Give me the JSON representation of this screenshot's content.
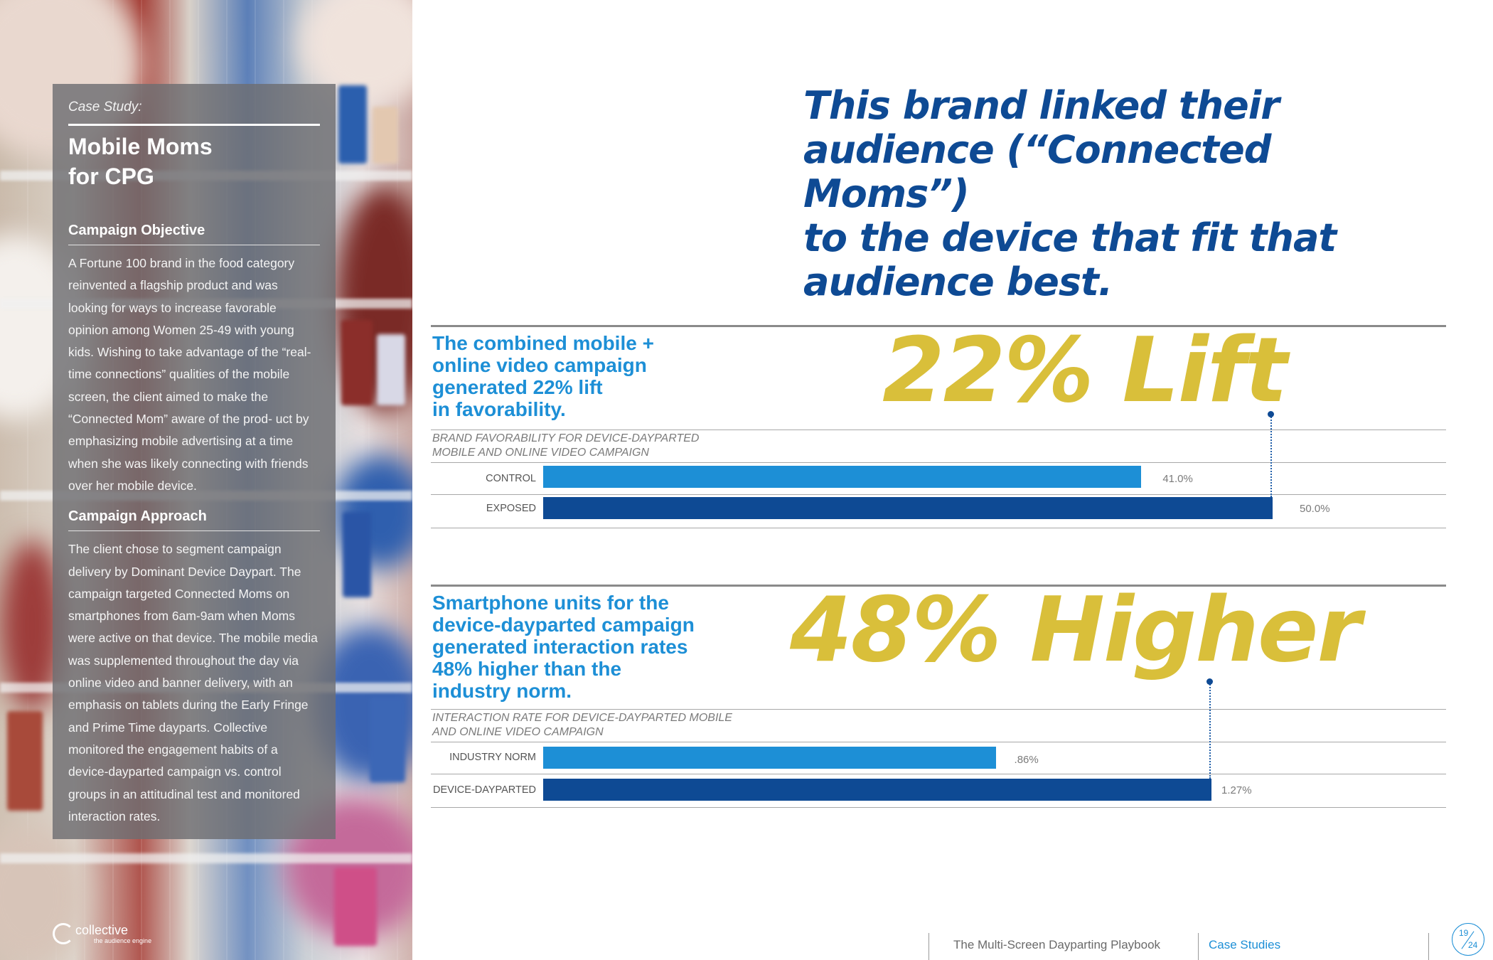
{
  "sidebar": {
    "eyebrow": "Case Study:",
    "title_line1": "Mobile Moms",
    "title_line2": "for CPG",
    "objective_heading": "Campaign Objective",
    "objective_body": "A Fortune 100 brand in the food category reinvented a flagship product and was looking for ways to increase favorable opinion among Women 25-49 with young kids. Wishing to take advantage of the “real-time connections” qualities of the mobile screen, the client aimed to make the “Connected Mom” aware of the prod- uct by emphasizing mobile advertising at a time when she was likely connecting with friends over her mobile device.",
    "approach_heading": "Campaign Approach",
    "approach_body": "The client chose to segment campaign delivery by Dominant Device Daypart. The campaign targeted Connected Moms on smartphones from 6am-9am when Moms were active on that device. The mobile media was supplemented throughout the day via online video and banner delivery, with an emphasis on tablets during the Early Fringe and Prime Time dayparts. Collective monitored the engagement habits of a device-dayparted campaign vs. control groups in an attitudinal test and monitored interaction rates."
  },
  "logo": {
    "wordmark": "collective",
    "tagline": "the audience engine"
  },
  "headline": {
    "line1": "This brand linked their",
    "line2": "audience (“Connected Moms”)",
    "line3": "to the device that fit that",
    "line4": "audience best."
  },
  "colors": {
    "headline_blue": "#0e4a94",
    "accent_blue": "#1d8fd6",
    "bar_light": "#1d8fd6",
    "bar_dark": "#0e4a94",
    "gold": "#d9bf3a"
  },
  "chart_data": [
    {
      "type": "bar",
      "orientation": "horizontal",
      "title": "22% Lift",
      "subtitle": "The combined mobile + online video campaign generated 22% lift in favorability.",
      "caption_line1": "BRAND FAVORABILITY FOR DEVICE-DAYPARTED",
      "caption_line2": "MOBILE AND ONLINE VIDEO CAMPAIGN",
      "categories": [
        "CONTROL",
        "EXPOSED"
      ],
      "values": [
        41.0,
        50.0
      ],
      "value_labels": [
        "41.0%",
        "50.0%"
      ],
      "xlim": [
        0,
        50
      ]
    },
    {
      "type": "bar",
      "orientation": "horizontal",
      "title": "48% Higher",
      "subtitle": "Smartphone units for the device-dayparted campaign generated interaction rates 48% higher than the industry norm.",
      "caption_line1": "INTERACTION RATE FOR DEVICE-DAYPARTED MOBILE",
      "caption_line2": "AND ONLINE VIDEO CAMPAIGN",
      "categories": [
        "INDUSTRY NORM",
        "DEVICE-DAYPARTED"
      ],
      "values": [
        0.86,
        1.27
      ],
      "value_labels": [
        ".86%",
        "1.27%"
      ],
      "xlim": [
        0,
        1.27
      ]
    }
  ],
  "stat1_desc": {
    "l1": "The combined mobile +",
    "l2": "online video campaign",
    "l3": "generated 22% lift",
    "l4": "in favorability."
  },
  "stat2_desc": {
    "l1": "Smartphone units for the",
    "l2": "device-dayparted campaign",
    "l3": "generated interaction rates",
    "l4": "48% higher than the",
    "l5": "industry norm."
  },
  "footer": {
    "book_title": "The Multi-Screen Dayparting Playbook",
    "section": "Case Studies",
    "page": "19",
    "total": "24"
  }
}
